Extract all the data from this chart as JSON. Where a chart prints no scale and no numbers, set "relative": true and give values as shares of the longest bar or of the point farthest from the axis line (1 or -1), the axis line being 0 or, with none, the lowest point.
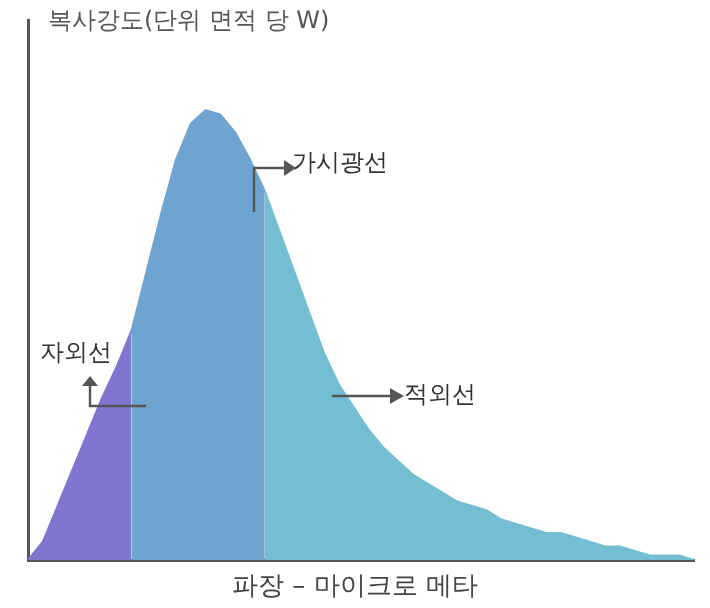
{
  "chart_data": {
    "type": "area",
    "relative": true,
    "ylabel": "복사강도(단위 면적 당 W)",
    "xlabel": "파장 – 마이크로 메타",
    "categories": [
      null,
      null,
      null,
      null,
      null,
      null,
      null,
      null,
      null,
      null,
      null,
      null,
      null,
      null,
      null,
      null,
      null,
      null,
      null,
      null,
      null,
      null,
      null,
      null,
      null,
      null,
      null,
      null,
      null,
      null,
      null,
      null,
      null,
      null,
      null,
      null,
      null,
      null,
      null,
      null,
      null,
      null,
      null,
      null,
      null,
      null
    ],
    "series": [
      {
        "color": "#8076d0",
        "values": [
          0,
          0.04,
          0.12,
          0.2,
          0.28,
          0.36,
          0.43,
          0.51,
          null,
          null,
          null,
          null,
          null,
          null,
          null,
          null,
          null,
          null,
          null,
          null,
          null,
          null,
          null,
          null,
          null,
          null,
          null,
          null,
          null,
          null,
          null,
          null,
          null,
          null,
          null,
          null,
          null,
          null,
          null,
          null,
          null,
          null,
          null,
          null,
          null,
          null
        ]
      },
      {
        "color": "#70a4d0",
        "values": [
          null,
          null,
          null,
          null,
          null,
          null,
          null,
          0.51,
          0.64,
          0.77,
          0.89,
          0.97,
          1,
          0.99,
          0.95,
          0.89,
          0.82,
          null,
          null,
          null,
          null,
          null,
          null,
          null,
          null,
          null,
          null,
          null,
          null,
          null,
          null,
          null,
          null,
          null,
          null,
          null,
          null,
          null,
          null,
          null,
          null,
          null,
          null,
          null,
          null,
          null
        ]
      },
      {
        "color": "#74bed3",
        "values": [
          null,
          null,
          null,
          null,
          null,
          null,
          null,
          null,
          null,
          null,
          null,
          null,
          null,
          null,
          null,
          null,
          0.82,
          0.73,
          0.64,
          0.55,
          0.46,
          0.39,
          0.34,
          0.29,
          0.25,
          0.22,
          0.19,
          0.17,
          0.15,
          0.13,
          0.12,
          0.11,
          0.09,
          0.08,
          0.07,
          0.06,
          0.06,
          0.05,
          0.04,
          0.03,
          0.03,
          0.02,
          0.01,
          0.01,
          0.01,
          0
        ]
      }
    ],
    "annotations": [
      "자외선",
      "가시광선",
      "적외선"
    ]
  }
}
